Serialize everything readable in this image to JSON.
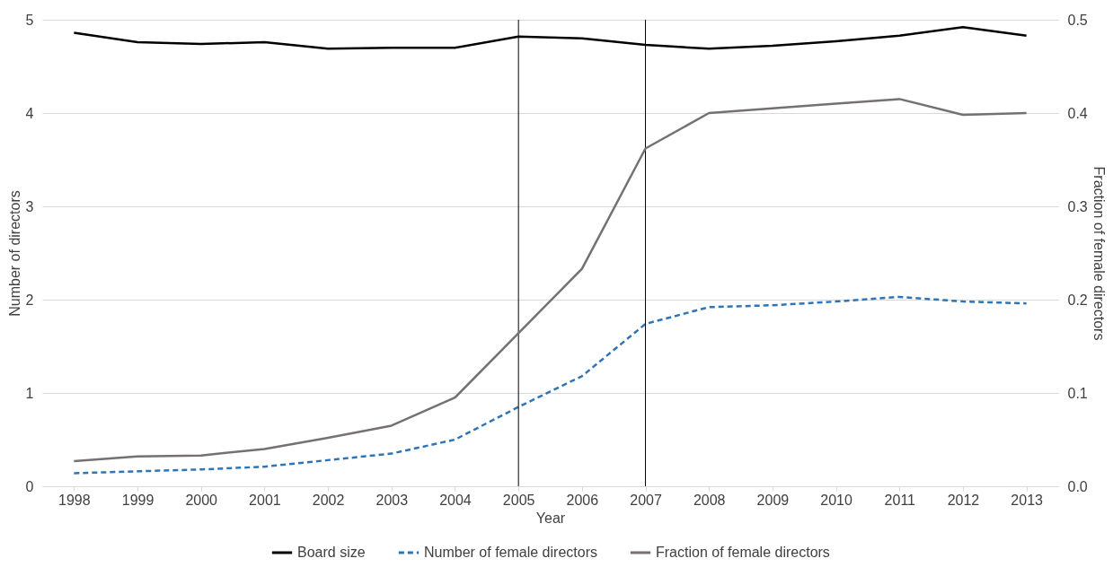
{
  "chart_data": {
    "type": "line",
    "xlabel": "Year",
    "ylabel": "Number of directors",
    "y2label": "Fraction of female directors",
    "categories": [
      "1998",
      "1999",
      "2000",
      "2001",
      "2002",
      "2003",
      "2004",
      "2005",
      "2006",
      "2007",
      "2008",
      "2009",
      "2010",
      "2011",
      "2012",
      "2013"
    ],
    "series": [
      {
        "name": "Board size",
        "color": "#000000",
        "line_style": "solid",
        "values": [
          4.86,
          4.76,
          4.74,
          4.76,
          4.69,
          4.7,
          4.7,
          4.82,
          4.8,
          4.73,
          4.69,
          4.72,
          4.77,
          4.83,
          4.92,
          4.83
        ]
      },
      {
        "name": "Number of female directors",
        "color": "#2e75b6",
        "line_style": "dashed",
        "values": [
          0.14,
          0.16,
          0.18,
          0.21,
          0.28,
          0.35,
          0.5,
          0.85,
          1.18,
          1.74,
          1.92,
          1.94,
          1.98,
          2.03,
          1.98,
          1.96
        ]
      },
      {
        "name": "Fraction of female directors",
        "color": "#767171",
        "line_style": "solid",
        "axis": "y2",
        "values": [
          0.027,
          0.032,
          0.033,
          0.04,
          0.052,
          0.065,
          0.095,
          0.164,
          0.233,
          0.362,
          0.4,
          0.405,
          0.41,
          0.415,
          0.398,
          0.4
        ]
      }
    ],
    "ylim": [
      0,
      5
    ],
    "yticks": [
      0,
      1,
      2,
      3,
      4,
      5
    ],
    "y2lim": [
      0,
      0.5
    ],
    "y2ticks": [
      {
        "value": 0,
        "label": "0.0"
      },
      0.1,
      0.2,
      0.3,
      0.4,
      0.5
    ],
    "ref_lines": [
      {
        "axis": "x",
        "value": "2005",
        "color": "#000000"
      },
      {
        "axis": "x",
        "value": "2007",
        "color": "#000000"
      }
    ],
    "grid": "y",
    "legend": "bottom",
    "marker": "none"
  }
}
